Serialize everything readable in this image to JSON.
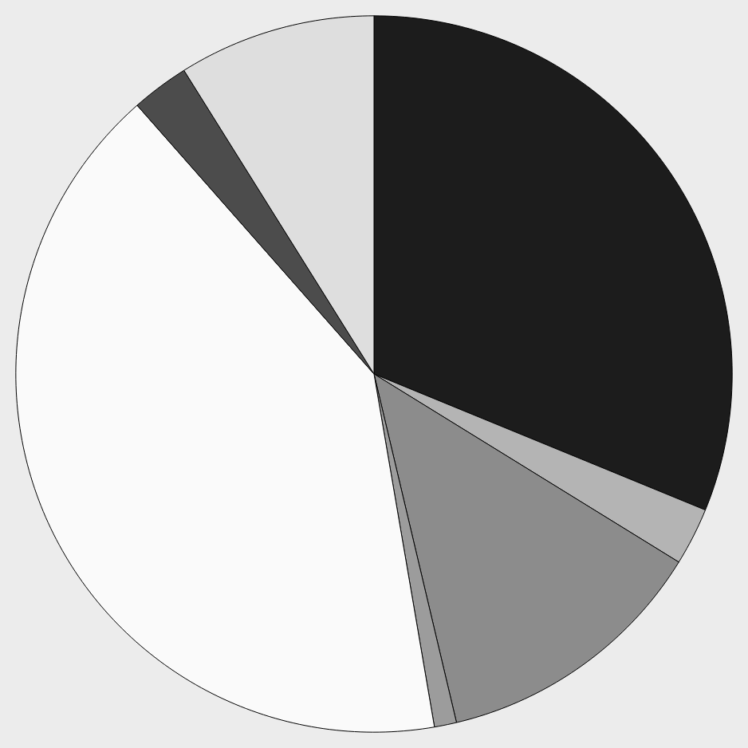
{
  "chart_data": {
    "type": "pie",
    "categories": [
      null,
      null,
      null,
      null,
      null,
      null,
      null
    ],
    "values": [
      31.2,
      2.6,
      12.5,
      1.0,
      41.2,
      2.6,
      8.9
    ],
    "colors": [
      "#1c1c1c",
      "#b4b4b4",
      "#8c8c8c",
      "#9c9c9c",
      "#fafafa",
      "#4c4c4c",
      "#dedede"
    ]
  }
}
